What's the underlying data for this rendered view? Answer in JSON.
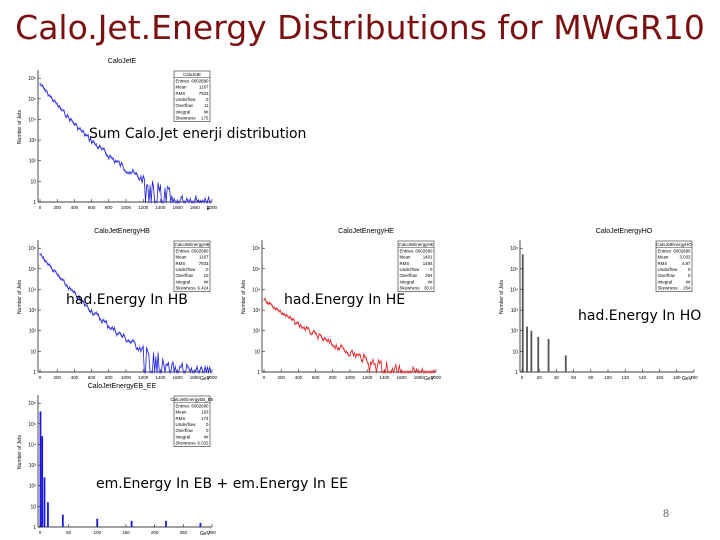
{
  "slide": {
    "title": "Calo.Jet.Energy Distributions for MWGR10",
    "page_number": "8",
    "colors": {
      "title": "#7a1010",
      "blue_hist": "#1a1adf",
      "red_hist": "#e01515",
      "gray_hist": "#555555"
    }
  },
  "captions": {
    "sum": "Sum Calo.Jet enerji distribution",
    "hb": "had.Energy In HB",
    "he": "had.Energy In HE",
    "ho": "had.Energy In HO",
    "em": "em.Energy In EB + em.Energy In EE"
  },
  "plots": {
    "e": {
      "title": "CaloJetE",
      "ylabel": "Number of Jets",
      "xlabel": "E",
      "stats_name": "CaloJetE",
      "stats_rows": [
        [
          "Entries",
          "6002680"
        ],
        [
          "Mean",
          "1167"
        ],
        [
          "RMS",
          "7933"
        ],
        [
          "Underflow",
          "0"
        ],
        [
          "Overflow",
          "11"
        ],
        [
          "Integral",
          "##"
        ],
        [
          "Skewness",
          "175"
        ]
      ]
    },
    "hb": {
      "title": "CaloJetEnergyHB",
      "ylabel": "Number of Jets",
      "xlabel": "GeV",
      "stats_name": "CaloJetEnergyHB",
      "stats_rows": [
        [
          "Entries",
          "6002680"
        ],
        [
          "Mean",
          "1167"
        ],
        [
          "RMS",
          "7933"
        ],
        [
          "Underflow",
          "0"
        ],
        [
          "Overflow",
          "10"
        ],
        [
          "Integral",
          "##"
        ],
        [
          "Skewness",
          "6.424"
        ]
      ]
    },
    "he": {
      "title": "CaloJetEnergyHE",
      "ylabel": "Number of Jets",
      "xlabel": "GeV",
      "stats_name": "CaloJetEnergyHE",
      "stats_rows": [
        [
          "Entries",
          "6002680"
        ],
        [
          "Mean",
          "1401"
        ],
        [
          "RMS",
          "1494"
        ],
        [
          "Underflow",
          "0"
        ],
        [
          "Overflow",
          "294"
        ],
        [
          "Integral",
          "##"
        ],
        [
          "Skewness",
          "30.0"
        ]
      ]
    },
    "ho": {
      "title": "CaloJetEnergyHO",
      "ylabel": "Number of Jets",
      "xlabel": "GeV",
      "stats_name": "CaloJetEnergyHO",
      "stats_rows": [
        [
          "Entries",
          "6002680"
        ],
        [
          "Mean",
          "3.033"
        ],
        [
          "RMS",
          "4.97"
        ],
        [
          "Underflow",
          "0"
        ],
        [
          "Overflow",
          "0"
        ],
        [
          "Integral",
          "##"
        ],
        [
          "Skewness",
          "254"
        ]
      ]
    },
    "ebee": {
      "title": "CaloJetEnergyEB_EE",
      "ylabel": "Number of Jets",
      "xlabel": "GeV",
      "stats_name": "CaloJetEnergyEB_EE",
      "stats_rows": [
        [
          "Entries",
          "6002680"
        ],
        [
          "Mean",
          "163"
        ],
        [
          "RMS",
          "174"
        ],
        [
          "Underflow",
          "0"
        ],
        [
          "Overflow",
          "0"
        ],
        [
          "Integral",
          "##"
        ],
        [
          "Skewness",
          "6.032"
        ]
      ]
    }
  },
  "chart_data": [
    {
      "type": "bar",
      "title": "CaloJetE",
      "xlabel": "E",
      "ylabel": "Number of Jets",
      "x_ticks": [
        "0",
        "200",
        "400",
        "600",
        "800",
        "1000",
        "1200",
        "1400",
        "1600",
        "1800",
        "2000"
      ],
      "y_ticks": [
        "1",
        "10",
        "10²",
        "10³",
        "10⁴",
        "10⁵",
        "10⁶"
      ],
      "y_scale": "log",
      "xlim": [
        0,
        2000
      ],
      "series": [
        {
          "color": "#1a1adf",
          "shape": "falling",
          "start_decades": 5.8,
          "end_decades": 0.3
        }
      ]
    },
    {
      "type": "bar",
      "title": "CaloJetEnergyHB",
      "xlabel": "GeV",
      "ylabel": "Number of Jets",
      "x_ticks": [
        "0",
        "200",
        "400",
        "600",
        "800",
        "1000",
        "1200",
        "1400",
        "1600",
        "1800",
        "2000"
      ],
      "y_ticks": [
        "1",
        "10",
        "10²",
        "10³",
        "10⁴",
        "10⁵",
        "10⁶"
      ],
      "y_scale": "log",
      "xlim": [
        0,
        2000
      ],
      "series": [
        {
          "color": "#1a1adf",
          "shape": "falling",
          "start_decades": 5.8,
          "end_decades": 0.3
        }
      ]
    },
    {
      "type": "bar",
      "title": "CaloJetEnergyHE",
      "xlabel": "GeV",
      "ylabel": "Number of Jets",
      "x_ticks": [
        "0",
        "200",
        "400",
        "600",
        "800",
        "1000",
        "1200",
        "1400",
        "1600",
        "1800",
        "2000"
      ],
      "y_ticks": [
        "1",
        "10",
        "10²",
        "10³",
        "10⁴",
        "10⁵",
        "10⁶"
      ],
      "y_scale": "log",
      "xlim": [
        0,
        2000
      ],
      "series": [
        {
          "color": "#e01515",
          "shape": "falling",
          "start_decades": 3.6,
          "end_decades": 0.2
        }
      ]
    },
    {
      "type": "bar",
      "title": "CaloJetEnergyHO",
      "xlabel": "GeV",
      "ylabel": "Number of Jets",
      "x_ticks": [
        "0",
        "20",
        "40",
        "60",
        "80",
        "100",
        "120",
        "140",
        "160",
        "180",
        "200"
      ],
      "y_ticks": [
        "1",
        "10",
        "10²",
        "10³",
        "10⁴",
        "10⁵",
        "10⁶"
      ],
      "y_scale": "log",
      "xlim": [
        0,
        200
      ],
      "series": [
        {
          "color": "#555555",
          "shape": "spikes",
          "x": [
            1,
            6,
            11,
            19,
            31,
            51
          ],
          "decades": [
            5.7,
            2.2,
            2.0,
            1.7,
            1.6,
            0.8
          ]
        }
      ]
    },
    {
      "type": "bar",
      "title": "CaloJetEnergyEB_EE",
      "xlabel": "GeV",
      "ylabel": "Number of Jets",
      "x_ticks": [
        "0",
        "50",
        "100",
        "150",
        "200",
        "250",
        "300"
      ],
      "y_ticks": [
        "1",
        "10",
        "10²",
        "10³",
        "10⁴",
        "10⁵",
        "10⁶"
      ],
      "y_scale": "log",
      "xlim": [
        0,
        300
      ],
      "series": [
        {
          "color": "#1a1adf",
          "shape": "spikes-low",
          "x": [
            1,
            4,
            8,
            14,
            40,
            100,
            160,
            220,
            280
          ],
          "decades": [
            5.6,
            4.4,
            2.4,
            1.2,
            0.6,
            0.4,
            0.3,
            0.3,
            0.2
          ]
        }
      ]
    }
  ]
}
